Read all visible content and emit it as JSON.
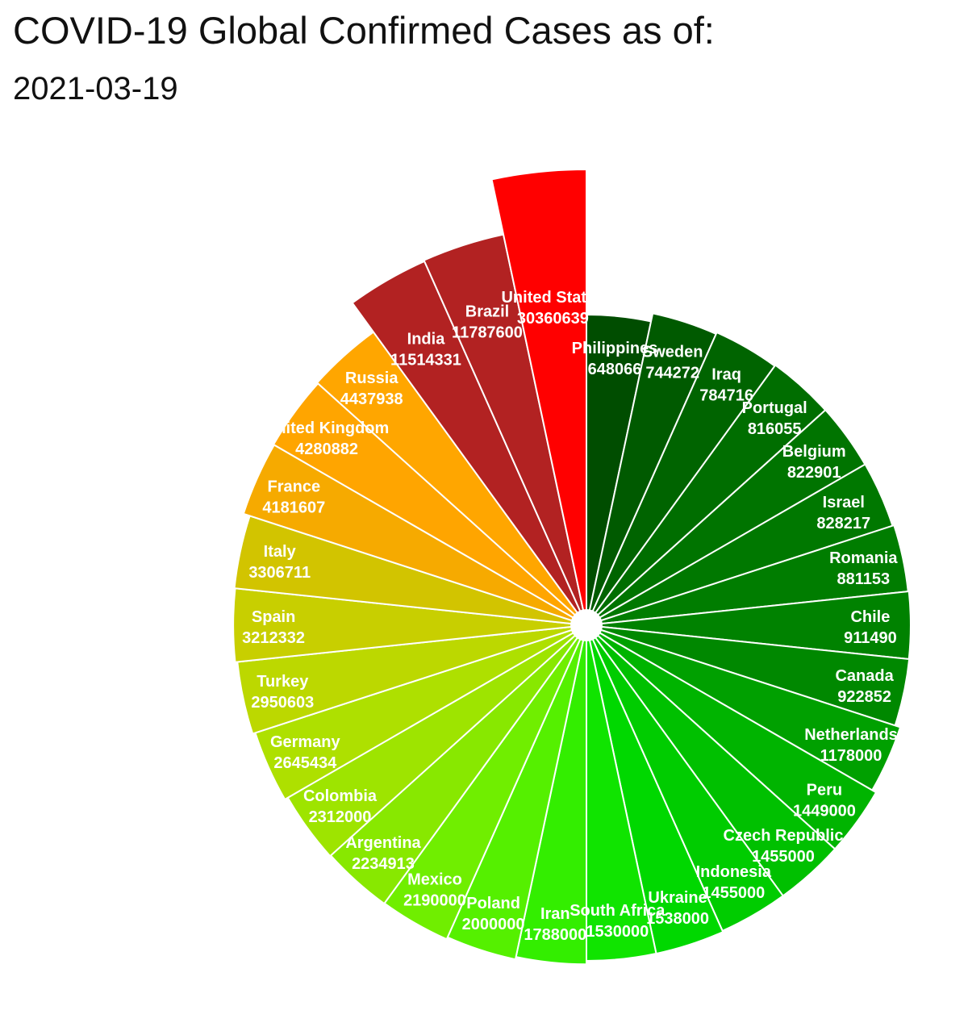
{
  "header": {
    "title": "COVID-19 Global Confirmed Cases as of:",
    "date": "2021-03-19"
  },
  "chart_data": {
    "type": "pie",
    "subtype": "polar-area",
    "center_hole": true,
    "slices": [
      {
        "name": "Philippines",
        "value": 648066,
        "color": "#004d00"
      },
      {
        "name": "Sweden",
        "value": 744272,
        "color": "#005a00"
      },
      {
        "name": "Iraq",
        "value": 784716,
        "color": "#006400"
      },
      {
        "name": "Portugal",
        "value": 816055,
        "color": "#006e00"
      },
      {
        "name": "Belgium",
        "value": 822901,
        "color": "#007400"
      },
      {
        "name": "Israel",
        "value": 828217,
        "color": "#007800"
      },
      {
        "name": "Romania",
        "value": 881153,
        "color": "#007d00"
      },
      {
        "name": "Chile",
        "value": 911490,
        "color": "#008200"
      },
      {
        "name": "Canada",
        "value": 922852,
        "color": "#008800"
      },
      {
        "name": "Netherlands",
        "value": 1178000,
        "color": "#00a000"
      },
      {
        "name": "Peru",
        "value": 1449000,
        "color": "#00b400"
      },
      {
        "name": "Czech Republic",
        "value": 1455000,
        "color": "#00c000"
      },
      {
        "name": "Indonesia",
        "value": 1455000,
        "color": "#00cc00"
      },
      {
        "name": "Ukraine",
        "value": 1538000,
        "color": "#00d800"
      },
      {
        "name": "South Africa",
        "value": 1530000,
        "color": "#10e400"
      },
      {
        "name": "Iran",
        "value": 1788000,
        "color": "#33ee00"
      },
      {
        "name": "Poland",
        "value": 2000000,
        "color": "#55f000"
      },
      {
        "name": "Mexico",
        "value": 2190000,
        "color": "#70ee00"
      },
      {
        "name": "Argentina",
        "value": 2234913,
        "color": "#88e800"
      },
      {
        "name": "Colombia",
        "value": 2312000,
        "color": "#9ee400"
      },
      {
        "name": "Germany",
        "value": 2645434,
        "color": "#aee000"
      },
      {
        "name": "Turkey",
        "value": 2950603,
        "color": "#bcd800"
      },
      {
        "name": "Spain",
        "value": 3212332,
        "color": "#c8cf00"
      },
      {
        "name": "Italy",
        "value": 3306711,
        "color": "#d2c400"
      },
      {
        "name": "France",
        "value": 4181607,
        "color": "#f6aa00"
      },
      {
        "name": "United Kingdom",
        "value": 4280882,
        "color": "#ffa500"
      },
      {
        "name": "Russia",
        "value": 4437938,
        "color": "#ffa600"
      },
      {
        "name": "India",
        "value": 11514331,
        "color": "#b22222"
      },
      {
        "name": "Brazil",
        "value": 11787600,
        "color": "#b22222"
      },
      {
        "name": "United States",
        "value": 30360639,
        "color": "#ff0000"
      }
    ]
  }
}
